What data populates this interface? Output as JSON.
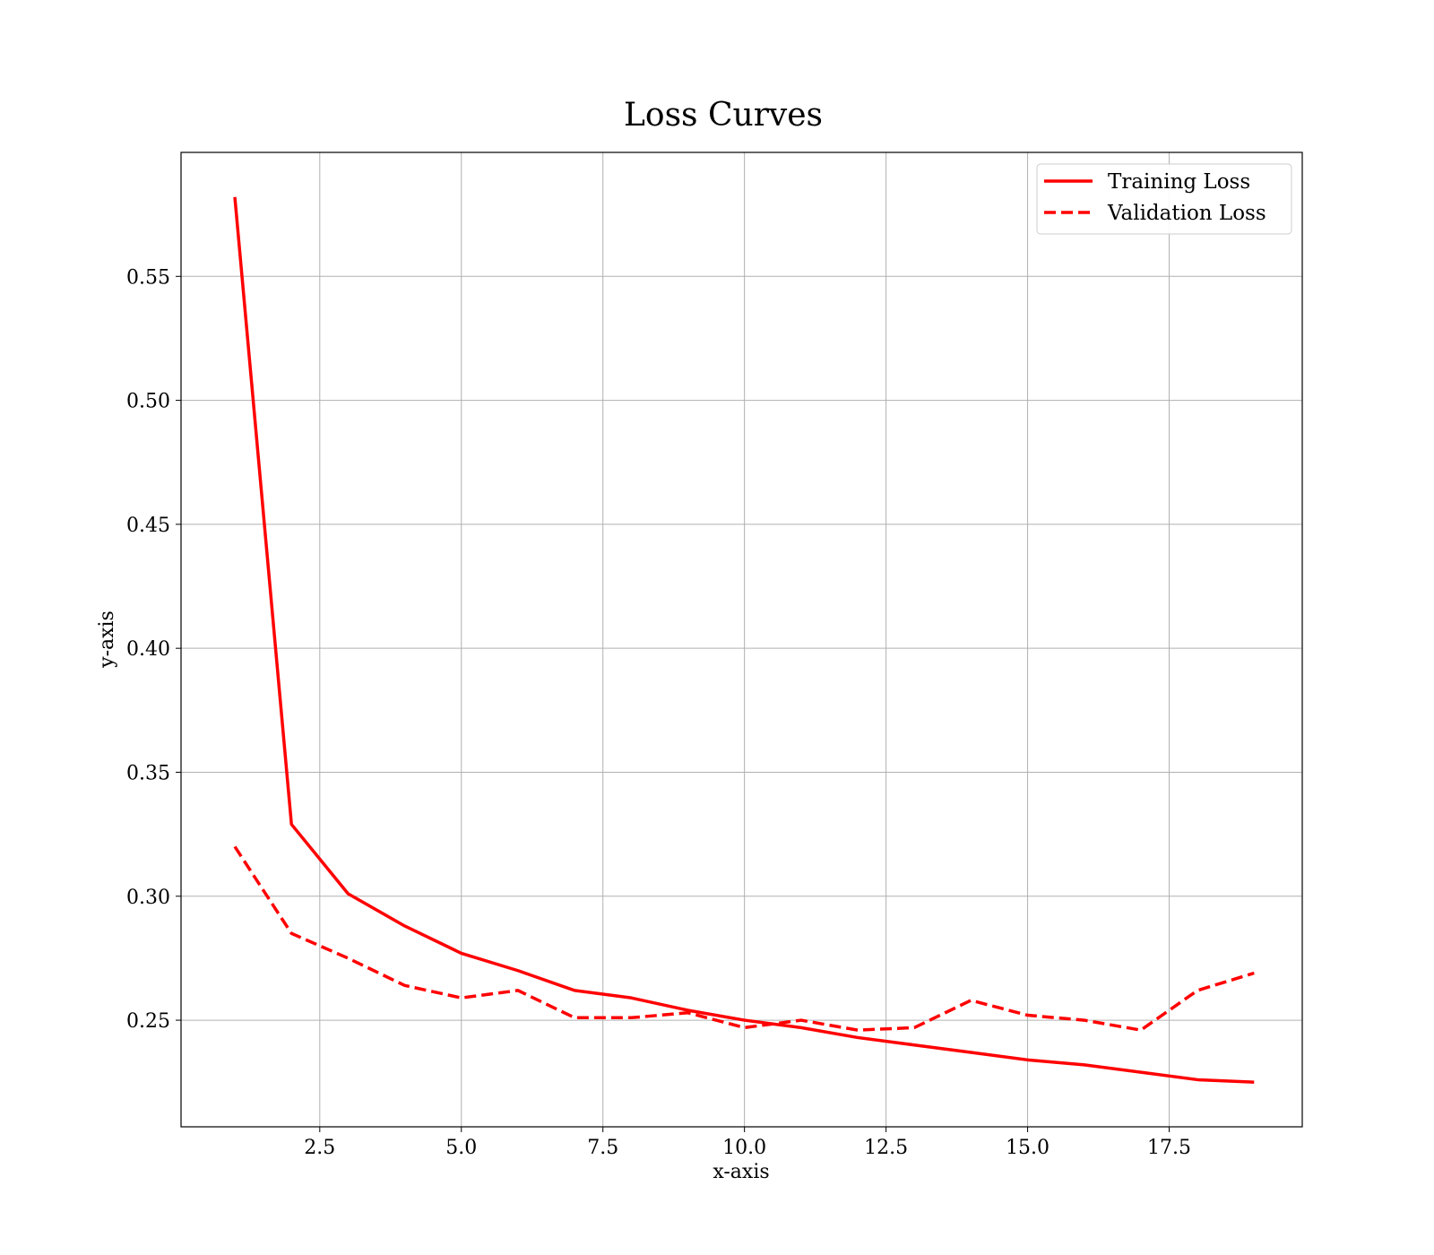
{
  "chart_data": {
    "type": "line",
    "title": "Loss Curves",
    "xlabel": "x-axis",
    "ylabel": "y-axis",
    "xlim": [
      0.05,
      19.85
    ],
    "ylim": [
      0.207,
      0.6
    ],
    "x_ticks": [
      2.5,
      5.0,
      7.5,
      10.0,
      12.5,
      15.0,
      17.5
    ],
    "x_tick_labels": [
      "2.5",
      "5.0",
      "7.5",
      "10.0",
      "12.5",
      "15.0",
      "17.5"
    ],
    "y_ticks": [
      0.25,
      0.3,
      0.35,
      0.4,
      0.45,
      0.5,
      0.55
    ],
    "y_tick_labels": [
      "0.25",
      "0.30",
      "0.35",
      "0.40",
      "0.45",
      "0.50",
      "0.55"
    ],
    "grid": true,
    "legend_position": "top-right",
    "x": [
      1,
      2,
      3,
      4,
      5,
      6,
      7,
      8,
      9,
      10,
      11,
      12,
      13,
      14,
      15,
      16,
      17,
      18,
      19
    ],
    "series": [
      {
        "name": "Training Loss",
        "style": "solid",
        "color": "#ff0000",
        "values": [
          0.582,
          0.329,
          0.301,
          0.288,
          0.277,
          0.27,
          0.262,
          0.259,
          0.254,
          0.25,
          0.247,
          0.243,
          0.24,
          0.237,
          0.234,
          0.232,
          0.229,
          0.226,
          0.225
        ]
      },
      {
        "name": "Validation Loss",
        "style": "dashed",
        "color": "#ff0000",
        "values": [
          0.32,
          0.285,
          0.275,
          0.264,
          0.259,
          0.262,
          0.251,
          0.251,
          0.253,
          0.247,
          0.25,
          0.246,
          0.247,
          0.258,
          0.252,
          0.25,
          0.246,
          0.262,
          0.269
        ]
      }
    ]
  }
}
